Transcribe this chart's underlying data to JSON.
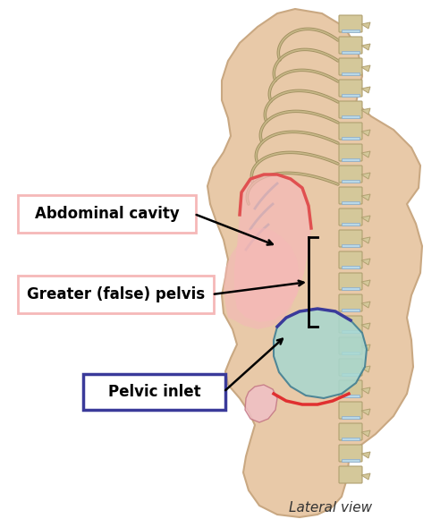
{
  "bg_color": "#ffffff",
  "body_fill": "#e8c9a8",
  "body_stroke": "#c9a882",
  "abdominal_fill": "#f5b8b8",
  "abdominal_stroke": "#e05050",
  "greater_pelvis_fill": "#f5b8b8",
  "pelvic_teal_fill": "#a8d8d0",
  "pelvic_teal_stroke": "#3a7a90",
  "spine_fill": "#d4c89a",
  "spine_stroke": "#b0a070",
  "rib_stroke": "#a09060",
  "rib_fill": "#c8b888",
  "red_line_color": "#e03030",
  "blue_line_color": "#3a3a9a",
  "label_abdominal": "Abdominal cavity",
  "label_abdominal_box_color": "#f5b8b8",
  "label_greater": "Greater (false) pelvis",
  "label_greater_box_color": "#f5b8b8",
  "label_pelvic": "Pelvic inlet",
  "label_pelvic_box_color": "#3a3a9a",
  "caption": "Lateral view",
  "figsize": [
    4.92,
    5.8
  ],
  "dpi": 100
}
